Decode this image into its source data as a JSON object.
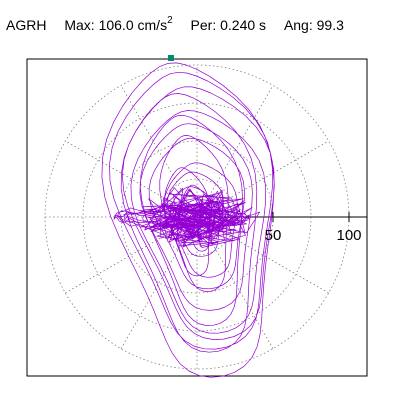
{
  "header": {
    "component": "AGRH",
    "max_label": "Max:",
    "max_value": "106.0",
    "max_unit": "cm/s",
    "max_unit_exp": "2",
    "per_label": "Per:",
    "per_value": "0.240 s",
    "ang_label": "Ang:",
    "ang_value": "99.3"
  },
  "chart_data": {
    "type": "scatter",
    "title": "",
    "max_amplitude": 106.0,
    "max_angle_deg": 99.3,
    "period_s": 0.24,
    "r_ticks": [
      50,
      100
    ],
    "r_tick_labels": [
      "50",
      "100"
    ],
    "rings": [
      25,
      50,
      75,
      100
    ],
    "spoke_step_deg": 30,
    "range": [
      -115,
      115
    ],
    "grid": true,
    "line_color": "#9400d3",
    "marker_color": "#008b6f",
    "grid_color": "#808080",
    "orbit": {
      "x_amp": [
        6,
        10,
        14,
        20,
        26,
        34,
        40,
        48,
        54,
        58,
        61,
        48,
        36,
        24,
        16,
        10,
        6
      ],
      "y_amp": [
        6,
        12,
        18,
        28,
        38,
        50,
        62,
        74,
        84,
        92,
        104.5,
        86,
        70,
        52,
        36,
        22,
        10
      ]
    }
  }
}
